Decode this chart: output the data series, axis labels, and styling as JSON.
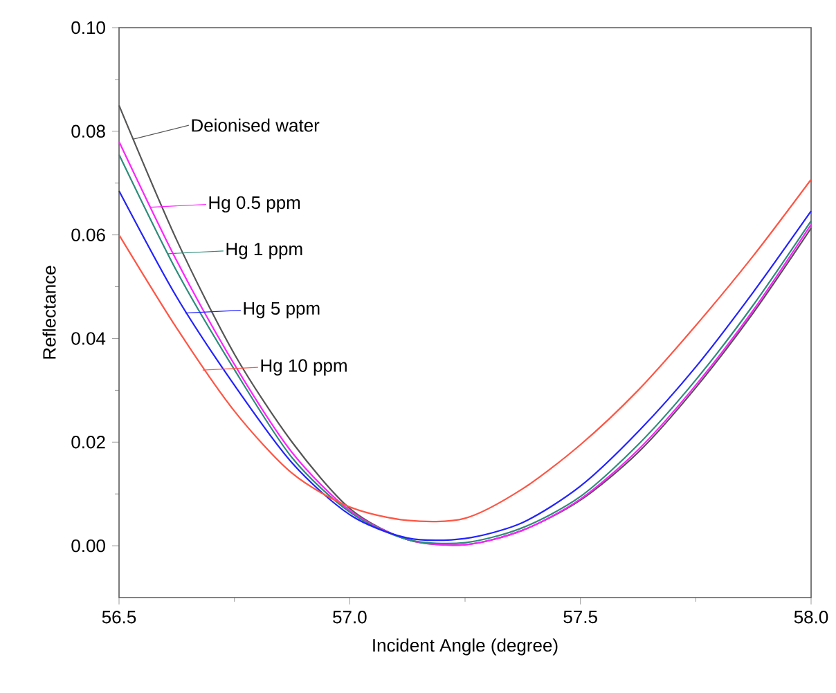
{
  "chart_data": {
    "type": "line",
    "xlabel": "Incident Angle (degree)",
    "ylabel": "Reflectance",
    "x": [
      56.5,
      56.625,
      56.75,
      56.875,
      57.0,
      57.125,
      57.25,
      57.375,
      57.5,
      57.625,
      57.75,
      57.875,
      58.0
    ],
    "series": [
      {
        "name": "Deionised water",
        "color": "#555555",
        "values": [
          0.085,
          0.059,
          0.037,
          0.02,
          0.0072,
          0.0012,
          0.0002,
          0.003,
          0.0088,
          0.018,
          0.0305,
          0.045,
          0.0613
        ]
      },
      {
        "name": "Hg 0.5 ppm",
        "color": "#ff22ff",
        "values": [
          0.078,
          0.055,
          0.035,
          0.018,
          0.0068,
          0.0012,
          0.0002,
          0.003,
          0.009,
          0.0185,
          0.031,
          0.0455,
          0.062
        ]
      },
      {
        "name": "Hg 1 ppm",
        "color": "#2e8b7a",
        "values": [
          0.0755,
          0.053,
          0.034,
          0.017,
          0.0065,
          0.0012,
          0.0006,
          0.0035,
          0.0095,
          0.0195,
          0.032,
          0.0465,
          0.0627
        ]
      },
      {
        "name": "Hg 5 ppm",
        "color": "#2222ff",
        "values": [
          0.0685,
          0.048,
          0.031,
          0.016,
          0.006,
          0.0015,
          0.0014,
          0.0045,
          0.0115,
          0.022,
          0.0345,
          0.049,
          0.0646
        ]
      },
      {
        "name": "Hg 10 ppm",
        "color": "#ff5544",
        "values": [
          0.06,
          0.042,
          0.026,
          0.014,
          0.0075,
          0.0049,
          0.0053,
          0.011,
          0.0195,
          0.03,
          0.0425,
          0.056,
          0.0707
        ]
      }
    ],
    "xlim": [
      56.5,
      58.0
    ],
    "ylim": [
      -0.01,
      0.1
    ],
    "xticks": [
      {
        "value": 56.5,
        "label": "56.5"
      },
      {
        "value": 57.0,
        "label": "57.0"
      },
      {
        "value": 57.5,
        "label": "57.5"
      },
      {
        "value": 58.0,
        "label": "58.0"
      }
    ],
    "yticks": [
      {
        "value": 0.0,
        "label": "0.00"
      },
      {
        "value": 0.02,
        "label": "0.02"
      },
      {
        "value": 0.04,
        "label": "0.04"
      },
      {
        "value": 0.06,
        "label": "0.06"
      },
      {
        "value": 0.08,
        "label": "0.08"
      },
      {
        "value": 0.1,
        "label": "0.10"
      }
    ],
    "grid": false,
    "legend": "top left",
    "marker": "none",
    "line_style": "solid"
  }
}
